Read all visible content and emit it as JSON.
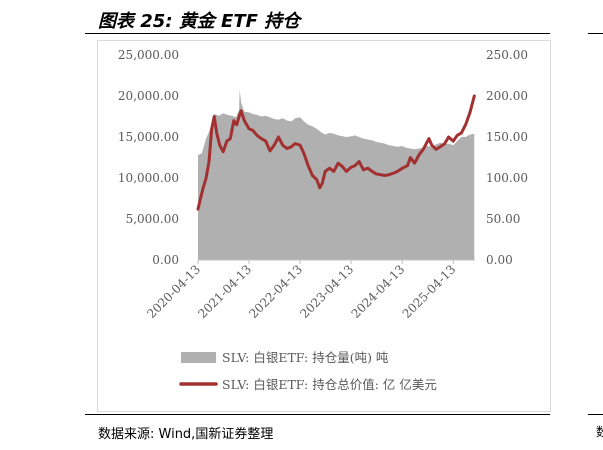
{
  "header": {
    "title": "图表 25:  黄金 ETF 持仓"
  },
  "footer": {
    "source": "数据来源:  Wind,国新证券整理",
    "clipped_char": "数"
  },
  "chart_data": {
    "type": "area",
    "title": "",
    "x_ticks": [
      "2020-04-13",
      "2021-04-13",
      "2022-04-13",
      "2023-04-13",
      "2024-04-13",
      "2025-04-13"
    ],
    "y_left": {
      "ticks": [
        "0.00",
        "5,000.00",
        "10,000.00",
        "15,000.00",
        "20,000.00",
        "25,000.00"
      ],
      "range": [
        0,
        25000
      ]
    },
    "y_right": {
      "ticks": [
        "0.00",
        "50.00",
        "100.00",
        "150.00",
        "200.00",
        "250.00"
      ],
      "range": [
        0,
        250
      ]
    },
    "legend_position": "bottom",
    "series": [
      {
        "name": "SLV: 白银ETF: 持仓量(吨) 吨",
        "type": "area",
        "axis": "left",
        "color": "#b0b0b0",
        "x": [
          "2020-04-13",
          "2020-05-10",
          "2020-06-10",
          "2020-07-10",
          "2020-07-25",
          "2020-08-10",
          "2020-09-10",
          "2020-10-10",
          "2020-11-10",
          "2020-12-10",
          "2021-01-10",
          "2021-02-01",
          "2021-02-05",
          "2021-02-15",
          "2021-03-10",
          "2021-04-13",
          "2021-05-10",
          "2021-06-10",
          "2021-07-10",
          "2021-08-10",
          "2021-09-10",
          "2021-10-10",
          "2021-11-10",
          "2021-12-10",
          "2022-01-10",
          "2022-02-10",
          "2022-03-10",
          "2022-04-13",
          "2022-05-10",
          "2022-06-10",
          "2022-07-10",
          "2022-08-10",
          "2022-09-10",
          "2022-10-10",
          "2022-11-10",
          "2022-12-10",
          "2023-01-10",
          "2023-02-10",
          "2023-03-10",
          "2023-04-13",
          "2023-05-10",
          "2023-06-10",
          "2023-07-10",
          "2023-08-10",
          "2023-09-10",
          "2023-10-10",
          "2023-11-10",
          "2023-12-10",
          "2024-01-10",
          "2024-02-10",
          "2024-03-10",
          "2024-04-13",
          "2024-05-10",
          "2024-06-10",
          "2024-07-10",
          "2024-08-10",
          "2024-09-10",
          "2024-10-10",
          "2024-11-10",
          "2024-12-10",
          "2025-01-10",
          "2025-02-10",
          "2025-03-10",
          "2025-04-13",
          "2025-05-10",
          "2025-06-10",
          "2025-07-10",
          "2025-08-10",
          "2025-09-10"
        ],
        "values": [
          12800,
          13000,
          14800,
          16000,
          17200,
          17800,
          17600,
          17900,
          17700,
          17600,
          17400,
          18300,
          20800,
          19200,
          18100,
          18000,
          17800,
          17700,
          17500,
          17600,
          17400,
          17200,
          17100,
          17300,
          17000,
          16900,
          17300,
          17400,
          16900,
          16500,
          16300,
          16000,
          15600,
          15300,
          15500,
          15400,
          15200,
          15100,
          15000,
          15100,
          15200,
          15000,
          14800,
          14700,
          14600,
          14400,
          14300,
          14200,
          14000,
          13900,
          13800,
          13900,
          13700,
          13600,
          13500,
          13600,
          13700,
          13900,
          13800,
          14100,
          14300,
          14100,
          14200,
          14000,
          14500,
          15000,
          15000,
          15300,
          15400
        ]
      },
      {
        "name": "SLV: 白银ETF: 持仓总价值: 亿 亿美元",
        "type": "line",
        "axis": "right",
        "color": "#a33030",
        "x": [
          "2020-04-13",
          "2020-05-01",
          "2020-05-20",
          "2020-06-10",
          "2020-07-01",
          "2020-07-20",
          "2020-08-07",
          "2020-08-25",
          "2020-09-15",
          "2020-10-10",
          "2020-11-05",
          "2020-11-30",
          "2020-12-25",
          "2021-01-15",
          "2021-02-01",
          "2021-02-15",
          "2021-03-10",
          "2021-04-13",
          "2021-05-10",
          "2021-06-10",
          "2021-07-10",
          "2021-08-10",
          "2021-09-10",
          "2021-10-10",
          "2021-11-10",
          "2021-12-10",
          "2022-01-10",
          "2022-02-10",
          "2022-03-08",
          "2022-04-13",
          "2022-05-10",
          "2022-06-10",
          "2022-07-10",
          "2022-08-10",
          "2022-09-01",
          "2022-09-20",
          "2022-10-10",
          "2022-11-10",
          "2022-12-10",
          "2023-01-10",
          "2023-02-10",
          "2023-03-10",
          "2023-04-13",
          "2023-05-10",
          "2023-06-10",
          "2023-07-10",
          "2023-08-10",
          "2023-09-10",
          "2023-10-10",
          "2023-11-10",
          "2023-12-10",
          "2024-01-10",
          "2024-02-10",
          "2024-03-10",
          "2024-04-13",
          "2024-05-20",
          "2024-06-10",
          "2024-07-10",
          "2024-08-10",
          "2024-09-10",
          "2024-10-20",
          "2024-11-10",
          "2024-12-10",
          "2025-01-10",
          "2025-02-10",
          "2025-03-10",
          "2025-04-13",
          "2025-05-10",
          "2025-06-10",
          "2025-07-10",
          "2025-08-10",
          "2025-09-10"
        ],
        "values": [
          62,
          75,
          88,
          100,
          120,
          160,
          175,
          155,
          140,
          132,
          145,
          148,
          170,
          165,
          175,
          182,
          170,
          160,
          158,
          152,
          148,
          145,
          133,
          140,
          150,
          140,
          136,
          138,
          142,
          140,
          130,
          115,
          103,
          98,
          88,
          94,
          108,
          112,
          108,
          118,
          114,
          108,
          113,
          115,
          120,
          110,
          112,
          108,
          105,
          104,
          103,
          104,
          106,
          108,
          112,
          115,
          125,
          118,
          128,
          135,
          148,
          140,
          135,
          138,
          142,
          150,
          145,
          152,
          155,
          165,
          180,
          200
        ]
      }
    ]
  }
}
